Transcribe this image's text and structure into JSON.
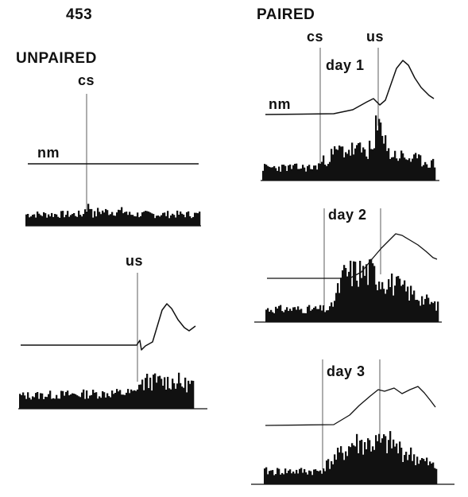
{
  "figure_id": "453",
  "conditions": {
    "unpaired": "UNPAIRED",
    "paired": "PAIRED"
  },
  "markers": {
    "cs": "cs",
    "us": "us",
    "nm": "nm"
  },
  "day_labels": [
    "day 1",
    "day 2",
    "day 3"
  ],
  "colors": {
    "ink": "#111111",
    "background": "#ffffff"
  }
}
